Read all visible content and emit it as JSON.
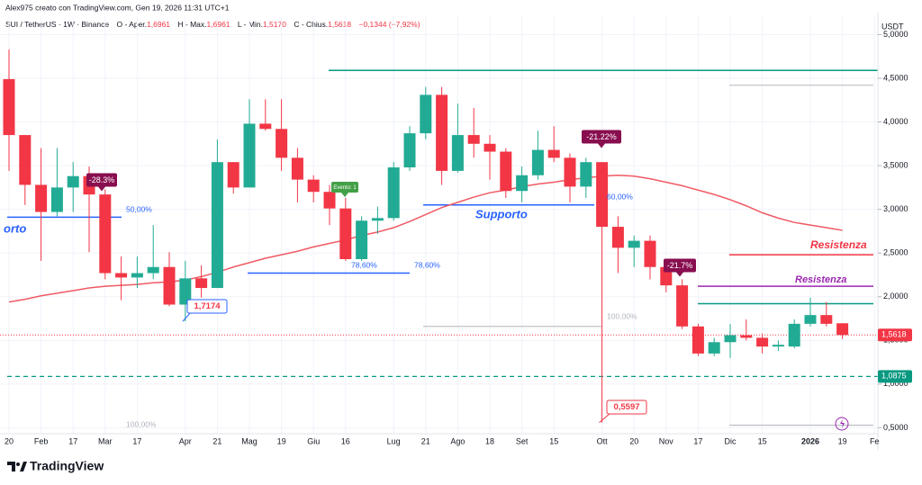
{
  "header": {
    "credit": "Alex975 creato con TradingView.com, Gen 19, 2026 11:31 UTC+1",
    "symbol": "SUI / TetherUS · 1W · Binance",
    "open_label": "O - Aper.",
    "open": "1,6961",
    "high_label": "H - Max.",
    "high": "1,6961",
    "low_label": "L - Min.",
    "low": "1,5170",
    "close_label": "C - Chius.",
    "close": "1,5618",
    "change": "−0,1344 (−7,92%)",
    "currency": "USDT"
  },
  "footer": {
    "brand": "TradingView"
  },
  "chart_data": {
    "type": "candlestick",
    "categories": [
      "20",
      null,
      "Feb",
      null,
      "17",
      null,
      "Mar",
      null,
      "17",
      null,
      null,
      "Apr",
      null,
      "21",
      null,
      "Mag",
      null,
      "19",
      null,
      "Giu",
      null,
      "16",
      null,
      null,
      "Lug",
      null,
      "21",
      null,
      "Ago",
      null,
      "18",
      null,
      "Set",
      null,
      "15",
      null,
      null,
      "Ott",
      null,
      "20",
      null,
      "Nov",
      null,
      "17",
      null,
      "Dic",
      null,
      "15",
      null,
      null,
      "2026",
      null,
      "19",
      null,
      "Fe"
    ],
    "open": [
      4.49,
      3.85,
      3.28,
      2.97,
      3.25,
      3.38,
      3.17,
      2.27,
      2.22,
      2.27,
      2.34,
      1.91,
      2.21,
      2.1,
      3.54,
      3.25,
      3.98,
      3.92,
      3.59,
      3.34,
      3.2,
      3.01,
      2.43,
      2.87,
      2.9,
      3.48,
      3.87,
      4.31,
      3.44,
      3.85,
      3.75,
      3.66,
      3.21,
      3.39,
      3.68,
      3.59,
      3.26,
      3.54,
      2.8,
      2.56,
      2.64,
      2.34,
      2.13,
      1.66,
      1.35,
      1.48,
      1.56,
      1.53,
      1.43,
      1.43,
      1.69,
      1.79,
      1.6961,
      null,
      null
    ],
    "high": [
      4.83,
      3.85,
      3.7,
      3.7,
      3.54,
      3.49,
      3.23,
      2.46,
      2.46,
      2.82,
      2.51,
      2.41,
      2.36,
      3.8,
      3.54,
      4.26,
      4.26,
      4.26,
      3.7,
      3.39,
      3.28,
      3.13,
      2.92,
      3.03,
      3.54,
      3.95,
      4.4,
      4.4,
      4.21,
      4.16,
      3.85,
      3.7,
      3.49,
      3.9,
      3.95,
      3.64,
      3.59,
      3.54,
      2.92,
      2.7,
      2.7,
      2.41,
      2.2,
      1.69,
      1.53,
      1.69,
      1.74,
      1.58,
      1.5,
      1.74,
      1.99,
      1.94,
      1.6961,
      null,
      null
    ],
    "low": [
      3.44,
      3.05,
      2.41,
      2.92,
      2.97,
      2.51,
      2.2,
      1.96,
      2.1,
      2.2,
      1.89,
      1.7174,
      1.99,
      2.1,
      3.18,
      3.25,
      3.9,
      3.44,
      3.08,
      3.08,
      2.82,
      2.41,
      2.41,
      2.72,
      2.87,
      3.44,
      3.8,
      3.28,
      3.42,
      3.59,
      3.34,
      3.13,
      3.08,
      3.34,
      3.54,
      3.08,
      3.13,
      0.5597,
      2.27,
      2.34,
      2.2,
      2.05,
      1.63,
      1.32,
      1.32,
      1.3,
      1.5,
      1.35,
      1.38,
      1.41,
      1.66,
      1.66,
      1.517,
      null,
      null
    ],
    "close": [
      3.85,
      3.28,
      2.97,
      3.25,
      3.38,
      3.17,
      2.27,
      2.22,
      2.27,
      2.34,
      1.91,
      2.21,
      2.1,
      3.54,
      3.25,
      3.98,
      3.92,
      3.59,
      3.34,
      3.2,
      3.01,
      2.43,
      2.87,
      2.9,
      3.48,
      3.87,
      4.31,
      3.44,
      3.85,
      3.75,
      3.66,
      3.21,
      3.39,
      3.68,
      3.59,
      3.26,
      3.54,
      2.8,
      2.56,
      2.64,
      2.34,
      2.13,
      1.66,
      1.35,
      1.48,
      1.56,
      1.53,
      1.43,
      1.45,
      1.69,
      1.79,
      1.69,
      1.5618,
      null,
      null
    ],
    "moving_average": {
      "color": "#f05a64",
      "values": [
        1.94,
        1.97,
        2.01,
        2.04,
        2.07,
        2.1,
        2.12,
        2.13,
        2.14,
        2.16,
        2.17,
        2.19,
        2.23,
        2.28,
        2.34,
        2.39,
        2.44,
        2.48,
        2.52,
        2.57,
        2.61,
        2.65,
        2.7,
        2.74,
        2.79,
        2.86,
        2.94,
        3.02,
        3.08,
        3.14,
        3.19,
        3.22,
        3.26,
        3.29,
        3.31,
        3.34,
        3.36,
        3.38,
        3.39,
        3.38,
        3.35,
        3.31,
        3.27,
        3.22,
        3.17,
        3.11,
        3.04,
        2.96,
        2.9,
        2.85,
        2.82,
        2.79,
        2.76,
        null,
        null
      ]
    },
    "up_color": "#22ab94",
    "down_color": "#f23645",
    "ylim": [
      0.35,
      5.21
    ],
    "yticks": [
      {
        "value": 0.5,
        "label": "0,5000"
      },
      {
        "value": 1.0,
        "label": "1,0000"
      },
      {
        "value": 1.5,
        "label": "1,5000"
      },
      {
        "value": 2.0,
        "label": "2,0000"
      },
      {
        "value": 2.5,
        "label": "2,5000"
      },
      {
        "value": 3.0,
        "label": "3,0000"
      },
      {
        "value": 3.5,
        "label": "3,5000"
      },
      {
        "value": 4.0,
        "label": "4,0000"
      },
      {
        "value": 4.5,
        "label": "4,5000"
      },
      {
        "value": 5.0,
        "label": "5,0000"
      }
    ],
    "grid": true,
    "levels": [
      {
        "value": 4.59,
        "color": "#089981"
      },
      {
        "value": 4.42,
        "color": "#b2b5be"
      },
      {
        "value": 2.48,
        "color": "#f23645"
      },
      {
        "value": 2.12,
        "color": "#9c27b0"
      },
      {
        "value": 1.92,
        "color": "#089981"
      },
      {
        "value": 3.05,
        "color": "#2962ff"
      },
      {
        "value": 2.91,
        "color": "#2962ff"
      },
      {
        "value": 2.27,
        "color": "#2962ff"
      },
      {
        "value": 1.66,
        "color": "#b2b5be"
      },
      {
        "value": 0.53,
        "color": "#b2b5be"
      }
    ],
    "price_lines": [
      {
        "value": 1.5618,
        "label": "1,5618",
        "color": "#f23645"
      },
      {
        "value": 1.0875,
        "label": "1,0875",
        "color": "#089981"
      }
    ],
    "point_tags": [
      {
        "value": 1.7174,
        "label": "1,7174"
      },
      {
        "value": 0.5597,
        "label": "0,5597"
      }
    ],
    "change_tags": [
      "-28.3%",
      "-21.22%",
      "-21.7%",
      "Evento: 1"
    ],
    "annotations": [
      "orto",
      "Supporto",
      "Resistenza",
      "Resistenza",
      "50,00%",
      "78,60%",
      "78,60%",
      "60,00%",
      "100,00%",
      "100,00%"
    ]
  }
}
